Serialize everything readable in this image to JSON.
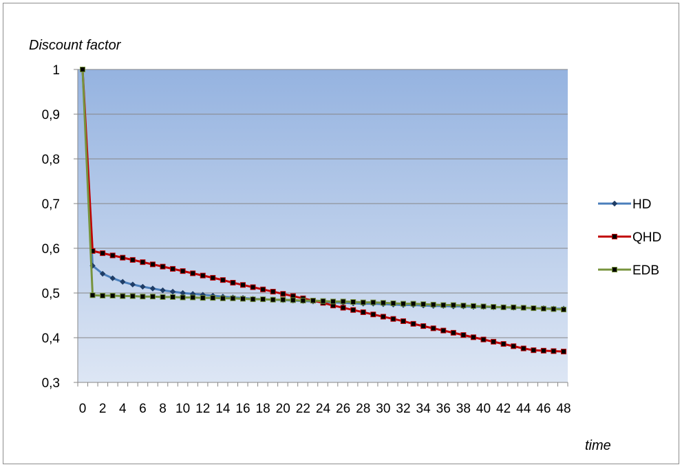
{
  "chart_data": {
    "type": "line",
    "title": "",
    "ylabel": "Discount factor",
    "xlabel": "time",
    "xlim": [
      0,
      48
    ],
    "ylim": [
      0.3,
      1
    ],
    "y_ticks": [
      "0,3",
      "0,4",
      "0,5",
      "0,6",
      "0,7",
      "0,8",
      "0,9",
      "1"
    ],
    "x_ticks": [
      "0",
      "2",
      "4",
      "6",
      "8",
      "10",
      "12",
      "14",
      "16",
      "18",
      "20",
      "22",
      "24",
      "26",
      "28",
      "30",
      "32",
      "34",
      "36",
      "38",
      "40",
      "42",
      "44",
      "46",
      "48"
    ],
    "grid": true,
    "legend_position": "right",
    "x": [
      0,
      1,
      2,
      3,
      4,
      5,
      6,
      7,
      8,
      9,
      10,
      11,
      12,
      13,
      14,
      15,
      16,
      17,
      18,
      19,
      20,
      21,
      22,
      23,
      24,
      25,
      26,
      27,
      28,
      29,
      30,
      31,
      32,
      33,
      34,
      35,
      36,
      37,
      38,
      39,
      40,
      41,
      42,
      43,
      44,
      45,
      46,
      47,
      48
    ],
    "series": [
      {
        "name": "HD",
        "color": "#4a7ebb",
        "marker": "diamond",
        "values": [
          1,
          0.561,
          0.543,
          0.533,
          0.525,
          0.519,
          0.514,
          0.51,
          0.506,
          0.503,
          0.5,
          0.498,
          0.496,
          0.494,
          0.492,
          0.49,
          0.489,
          0.487,
          0.486,
          0.485,
          0.484,
          0.483,
          0.482,
          0.481,
          0.48,
          0.479,
          0.478,
          0.477,
          0.476,
          0.476,
          0.475,
          0.474,
          0.473,
          0.473,
          0.472,
          0.471,
          0.471,
          0.47,
          0.47,
          0.469,
          0.469,
          0.468,
          0.468,
          0.467,
          0.467,
          0.466,
          0.466,
          0.465,
          0.465
        ]
      },
      {
        "name": "QHD",
        "color": "#c00000",
        "marker": "square",
        "values": [
          1,
          0.594,
          0.589,
          0.584,
          0.579,
          0.574,
          0.569,
          0.564,
          0.559,
          0.554,
          0.549,
          0.544,
          0.539,
          0.534,
          0.529,
          0.523,
          0.518,
          0.513,
          0.508,
          0.503,
          0.498,
          0.493,
          0.488,
          0.483,
          0.478,
          0.472,
          0.467,
          0.462,
          0.457,
          0.452,
          0.447,
          0.442,
          0.437,
          0.431,
          0.426,
          0.421,
          0.416,
          0.411,
          0.406,
          0.401,
          0.396,
          0.391,
          0.386,
          0.381,
          0.376,
          0.372,
          0.371,
          0.37,
          0.369
        ]
      },
      {
        "name": "EDB",
        "color": "#77933c",
        "marker": "square",
        "values": [
          1,
          0.495,
          0.494,
          0.494,
          0.493,
          0.493,
          0.492,
          0.492,
          0.491,
          0.491,
          0.49,
          0.49,
          0.489,
          0.489,
          0.488,
          0.488,
          0.487,
          0.486,
          0.486,
          0.485,
          0.485,
          0.484,
          0.483,
          0.483,
          0.482,
          0.481,
          0.481,
          0.48,
          0.479,
          0.479,
          0.478,
          0.477,
          0.476,
          0.476,
          0.475,
          0.474,
          0.473,
          0.473,
          0.472,
          0.471,
          0.47,
          0.469,
          0.468,
          0.468,
          0.467,
          0.466,
          0.465,
          0.464,
          0.463
        ]
      }
    ]
  }
}
